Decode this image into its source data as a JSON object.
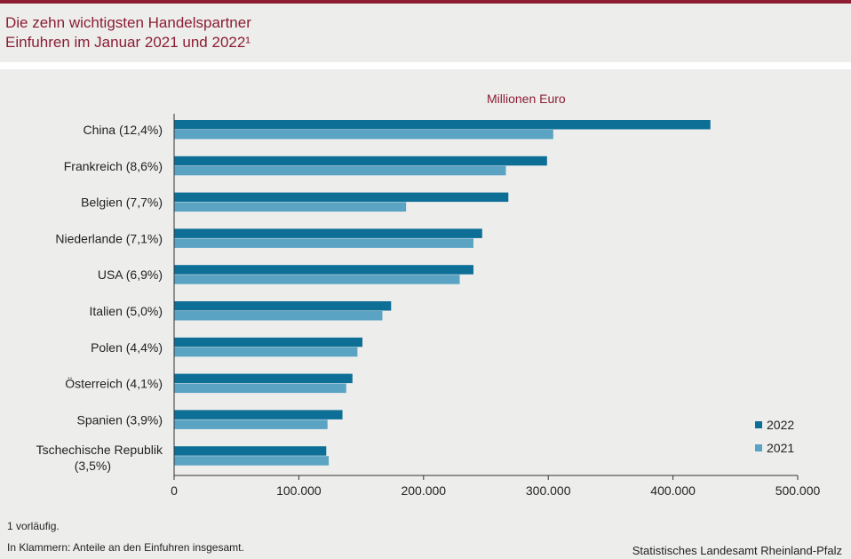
{
  "header": {
    "title_line1": "Die zehn wichtigsten Handelspartner",
    "title_line2": "Einfuhren im Januar 2021 und 2022¹"
  },
  "unit_label": "Millionen  Euro",
  "footer": {
    "note1": "1 vorläufig.",
    "note2": "In Klammern:  Anteile an den Einfuhren  insgesamt.",
    "source": "Statistisches  Landesamt  Rheinland-Pfalz"
  },
  "colors": {
    "series_2022": "#0d6e96",
    "series_2021": "#5aa3c3",
    "accent": "#8c1d33"
  },
  "chart_data": {
    "type": "bar",
    "orientation": "horizontal",
    "categories": [
      "China (12,4%)",
      "Frankreich (8,6%)",
      "Belgien (7,7%)",
      "Niederlande (7,1%)",
      "USA (6,9%)",
      "Italien (5,0%)",
      "Polen (4,4%)",
      "Österreich (4,1%)",
      "Spanien (3,9%)",
      "Tschechische Republik|(3,5%)"
    ],
    "series": [
      {
        "name": "2022",
        "values": [
          430000,
          299000,
          268000,
          247000,
          240000,
          174000,
          151000,
          143000,
          135000,
          122000
        ]
      },
      {
        "name": "2021",
        "values": [
          304000,
          266000,
          186000,
          240000,
          229000,
          167000,
          147000,
          138000,
          123000,
          124000
        ]
      }
    ],
    "xlim": [
      0,
      500000
    ],
    "xticks": [
      0,
      100000,
      200000,
      300000,
      400000,
      500000
    ],
    "xtick_labels": [
      "0",
      "100.000",
      "200.000",
      "300.000",
      "400.000",
      "500.000"
    ],
    "legend_position": "bottom-right",
    "grid": false
  }
}
